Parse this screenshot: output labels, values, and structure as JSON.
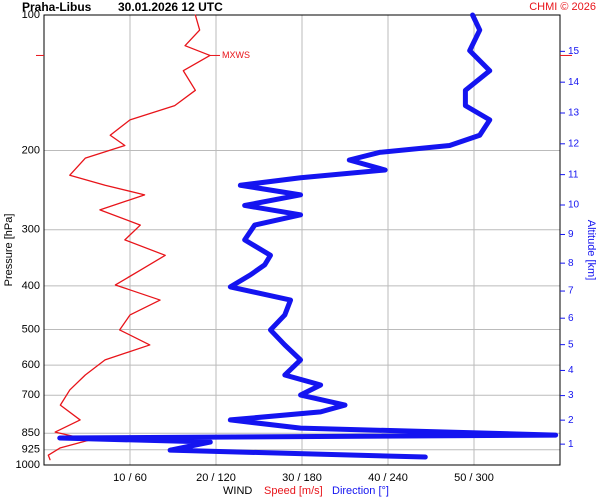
{
  "chart_data": {
    "type": "line",
    "title": "Praha-Libus",
    "subtitle": "30.01.2026 12 UTC",
    "credit": "CHMI © 2026",
    "ylabel": "Pressure [hPa]",
    "y2label": "Altitude [km]",
    "xlabel": "WIND",
    "ylog": true,
    "grid": true,
    "ylim": [
      100,
      1000
    ],
    "yticks": [
      100,
      200,
      300,
      400,
      500,
      600,
      700,
      850,
      925,
      1000
    ],
    "xlim": [
      0,
      60
    ],
    "x2lim": [
      0,
      360
    ],
    "xticks": [
      {
        "value": 10,
        "label": "10 / 60"
      },
      {
        "value": 20,
        "label": "20 / 120"
      },
      {
        "value": 30,
        "label": "30 / 180"
      },
      {
        "value": 40,
        "label": "40 / 240"
      },
      {
        "value": 50,
        "label": "50 / 300"
      }
    ],
    "y2ticks": [
      1,
      2,
      3,
      4,
      5,
      6,
      7,
      8,
      9,
      10,
      11,
      12,
      13,
      14,
      15
    ],
    "annotation": {
      "text": "MXWS",
      "pressure": 123,
      "speed": 19.3
    },
    "series": [
      {
        "name": "Speed [m/s]",
        "color": "#e8141a",
        "pressure": [
          100,
          108,
          117,
          123,
          133,
          147,
          159,
          171,
          185,
          195,
          208,
          227,
          239,
          251,
          271,
          293,
          316,
          342,
          369,
          398,
          430,
          464,
          501,
          541,
          584,
          631,
          681,
          736,
          794,
          845,
          880,
          916,
          951,
          973
        ],
        "values": [
          17.6,
          18.1,
          16.4,
          19.3,
          16.2,
          17.6,
          15.2,
          10,
          7.7,
          9.4,
          4.8,
          3.0,
          7.1,
          11.7,
          6.5,
          11.2,
          9.4,
          14.1,
          11.2,
          8.3,
          13.5,
          10,
          8.8,
          12.3,
          7.1,
          4.8,
          3.0,
          1.9,
          4.2,
          1.3,
          5.3,
          1.9,
          0.5,
          0.7
        ]
      },
      {
        "name": "Direction [°]",
        "color": "#1414f0",
        "axis": "x2",
        "pressure": [
          100,
          108,
          120,
          133,
          147,
          159,
          171,
          185,
          195,
          202,
          210,
          221,
          230,
          239,
          251,
          265,
          278,
          293,
          316,
          342,
          359,
          378,
          402,
          430,
          464,
          501,
          541,
          584,
          631,
          664,
          699,
          736,
          762,
          794,
          828,
          858,
          871,
          889,
          927,
          960
        ],
        "values": [
          299,
          304,
          297,
          311,
          294,
          294,
          311,
          304,
          283,
          234,
          213,
          238,
          179,
          137,
          179,
          140,
          179,
          147,
          140,
          158,
          154,
          144,
          130,
          172,
          168,
          158,
          168,
          179,
          168,
          193,
          179,
          210,
          193,
          130,
          179,
          357,
          11,
          116,
          88,
          266
        ]
      }
    ]
  }
}
